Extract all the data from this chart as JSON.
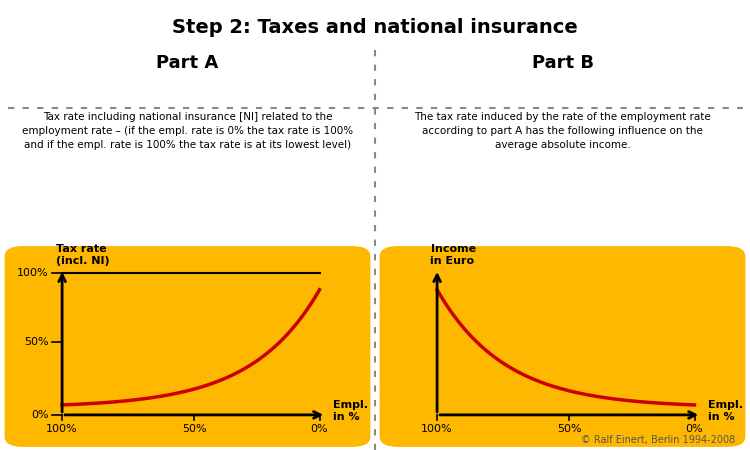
{
  "title": "Step 2: Taxes and national insurance",
  "title_fontsize": 14,
  "background_color": "#ffffff",
  "panel_color": "#FFB800",
  "part_a_label": "Part A",
  "part_b_label": "Part B",
  "part_a_desc": "Tax rate including national insurance [NI] related to the\nemployment rate – (if the empl. rate is 0% the tax rate is 100%\nand if the empl. rate is 100% the tax rate is at its lowest level)",
  "part_b_desc": "The tax rate induced by the rate of the employment rate\naccording to part A has the following influence on the\naverage absolute income.",
  "copyright": "© Ralf Einert, Berlin 1994-2008",
  "panel_a_ylabel": "Tax rate\n(incl. NI)",
  "panel_a_xlabel": "Empl.\nin %",
  "panel_b_ylabel": "Income\nin Euro",
  "panel_b_xlabel": "Empl.\nin %",
  "panel_a_xticks": [
    "100%",
    "50%",
    "0%"
  ],
  "panel_a_yticks": [
    "0%",
    "50%",
    "100%"
  ],
  "panel_b_xticks": [
    "100%",
    "50%",
    "0%"
  ],
  "dotted_line_color": "#888888",
  "curve_color": "#cc0000",
  "axis_color": "#000000"
}
